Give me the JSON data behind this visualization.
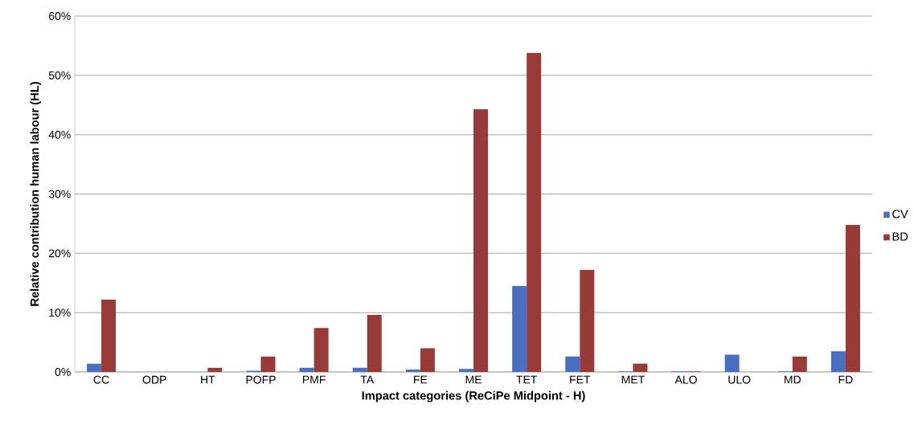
{
  "chart_data": {
    "type": "bar",
    "xlabel": "Impact categories (ReCiPe Midpoint - H)",
    "ylabel": "Relative contribution human labour (HL)",
    "categories": [
      "CC",
      "ODP",
      "HT",
      "POFP",
      "PMF",
      "TA",
      "FE",
      "ME",
      "TET",
      "FET",
      "MET",
      "ALO",
      "ULO",
      "MD",
      "FD"
    ],
    "series": [
      {
        "name": "CV",
        "color": "#4a6fc0",
        "values": [
          1.4,
          0,
          0,
          0.2,
          0.7,
          0.7,
          0.4,
          0.5,
          14.5,
          2.6,
          0.1,
          0.1,
          2.9,
          0.1,
          3.5
        ]
      },
      {
        "name": "BD",
        "color": "#983b38",
        "values": [
          12.2,
          0,
          0.7,
          2.6,
          7.4,
          9.6,
          4.0,
          44.3,
          53.8,
          17.2,
          1.4,
          0.1,
          0,
          2.6,
          24.8
        ]
      }
    ],
    "ylim": [
      0,
      60
    ],
    "yticks": [
      {
        "value": 0,
        "label": "0%"
      },
      {
        "value": 10,
        "label": "10%"
      },
      {
        "value": 20,
        "label": "20%"
      },
      {
        "value": 30,
        "label": "30%"
      },
      {
        "value": 40,
        "label": "40%"
      },
      {
        "value": 50,
        "label": "50%"
      },
      {
        "value": 60,
        "label": "60%"
      }
    ],
    "grid": "y",
    "legend": "right"
  }
}
